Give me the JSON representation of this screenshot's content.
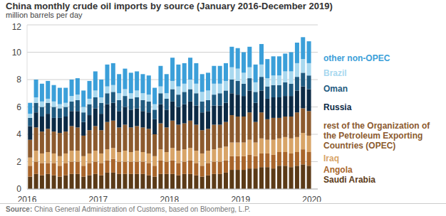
{
  "chart_data": {
    "type": "bar",
    "title": "China monthly crude oil imports by source (January 2016-December 2019)",
    "subtitle": "million barrels per day",
    "source": "Source: China General Administration of Customs, based on Bloomberg, L.P.",
    "stacked": true,
    "grid": true,
    "ylim": [
      0,
      12
    ],
    "yticks": [
      0,
      2,
      4,
      6,
      8,
      10,
      12
    ],
    "categories": [
      "2016",
      null,
      null,
      null,
      null,
      null,
      null,
      null,
      null,
      null,
      null,
      null,
      "2017",
      null,
      null,
      null,
      null,
      null,
      null,
      null,
      null,
      null,
      null,
      null,
      "2018",
      null,
      null,
      null,
      null,
      null,
      null,
      null,
      null,
      null,
      null,
      null,
      "2019",
      null,
      null,
      null,
      null,
      null,
      null,
      null,
      null,
      null,
      null,
      null,
      "2020"
    ],
    "series": [
      {
        "name": "Saudi Arabia",
        "color": "#5b3a17",
        "values": [
          0.9,
          1.1,
          1.0,
          1.1,
          1.0,
          0.9,
          1.0,
          1.1,
          1.1,
          0.9,
          1.0,
          1.1,
          1.0,
          1.2,
          1.2,
          1.1,
          1.1,
          1.1,
          1.1,
          1.1,
          1.0,
          0.9,
          1.1,
          1.1,
          1.1,
          1.0,
          1.1,
          1.1,
          1.0,
          0.9,
          1.0,
          1.1,
          1.1,
          1.2,
          1.4,
          1.4,
          1.4,
          1.5,
          1.5,
          1.6,
          1.6,
          1.5,
          1.7,
          1.7,
          1.6,
          1.7,
          1.8,
          1.7,
          null
        ]
      },
      {
        "name": "Angola",
        "color": "#a8652b",
        "values": [
          0.8,
          0.9,
          0.9,
          0.8,
          0.9,
          0.8,
          0.9,
          0.9,
          0.9,
          0.8,
          0.9,
          0.9,
          0.9,
          0.9,
          1.0,
          0.9,
          0.9,
          0.9,
          0.9,
          0.9,
          0.9,
          0.8,
          1.0,
          0.9,
          1.0,
          0.9,
          0.9,
          1.0,
          0.9,
          0.8,
          0.9,
          0.9,
          0.9,
          0.9,
          1.0,
          1.0,
          1.0,
          1.0,
          0.9,
          1.0,
          1.0,
          1.0,
          1.0,
          1.0,
          1.0,
          1.0,
          1.1,
          1.0,
          null
        ]
      },
      {
        "name": "Iraq",
        "color": "#d8a467",
        "values": [
          0.6,
          0.8,
          0.7,
          0.8,
          0.7,
          0.7,
          0.7,
          0.8,
          0.8,
          0.7,
          0.7,
          0.8,
          0.7,
          0.8,
          0.8,
          0.7,
          0.8,
          0.7,
          0.8,
          0.7,
          0.7,
          0.7,
          0.8,
          0.7,
          0.9,
          0.9,
          0.9,
          0.9,
          0.9,
          0.9,
          0.9,
          0.9,
          1.0,
          1.0,
          1.0,
          1.0,
          1.0,
          1.1,
          1.0,
          1.1,
          1.0,
          1.1,
          1.0,
          1.1,
          1.1,
          1.1,
          1.2,
          1.2,
          null
        ]
      },
      {
        "name": "rest of the Organization of the Petroleum Exporting Countries (OPEC)",
        "color": "#8c5a2e",
        "values": [
          1.3,
          1.7,
          1.6,
          1.7,
          1.6,
          1.7,
          1.6,
          1.8,
          1.7,
          1.5,
          1.7,
          1.8,
          1.7,
          2.0,
          2.0,
          1.8,
          1.9,
          1.8,
          1.8,
          1.8,
          1.8,
          1.6,
          1.9,
          1.8,
          2.0,
          1.9,
          1.9,
          2.0,
          1.9,
          1.7,
          1.6,
          1.8,
          1.7,
          1.8,
          2.0,
          1.9,
          1.9,
          2.0,
          1.5,
          1.9,
          1.5,
          1.6,
          1.5,
          1.5,
          1.6,
          1.8,
          1.8,
          1.8,
          null
        ]
      },
      {
        "name": "Russia",
        "color": "#0c2a45",
        "values": [
          1.0,
          1.1,
          1.1,
          1.1,
          1.0,
          1.1,
          1.1,
          1.1,
          1.2,
          1.0,
          1.1,
          1.3,
          1.2,
          1.3,
          1.3,
          1.2,
          1.3,
          1.3,
          1.3,
          1.2,
          1.2,
          1.1,
          1.4,
          1.3,
          1.4,
          1.3,
          1.4,
          1.4,
          1.4,
          1.3,
          1.3,
          1.4,
          1.4,
          1.4,
          1.6,
          1.6,
          1.5,
          1.6,
          1.4,
          1.6,
          1.5,
          1.5,
          1.5,
          1.5,
          1.5,
          1.6,
          1.6,
          1.6,
          null
        ]
      },
      {
        "name": "Oman",
        "color": "#1f5a80",
        "values": [
          0.6,
          0.7,
          0.7,
          0.8,
          0.8,
          0.7,
          0.7,
          0.7,
          0.8,
          0.7,
          0.8,
          0.8,
          0.8,
          0.8,
          0.8,
          0.8,
          0.8,
          0.8,
          0.8,
          0.8,
          0.8,
          0.7,
          0.8,
          0.8,
          0.9,
          0.9,
          0.9,
          0.9,
          0.9,
          0.8,
          0.8,
          0.8,
          0.9,
          0.9,
          1.0,
          1.0,
          0.9,
          0.9,
          0.8,
          1.0,
          0.9,
          0.9,
          0.9,
          1.0,
          0.9,
          1.0,
          1.0,
          1.0,
          null
        ]
      },
      {
        "name": "Brazil",
        "color": "#a8d8ef",
        "values": [
          0.3,
          0.4,
          0.4,
          0.3,
          0.4,
          0.3,
          0.3,
          0.4,
          0.4,
          0.4,
          0.4,
          0.5,
          0.4,
          0.5,
          0.5,
          0.5,
          0.5,
          0.4,
          0.5,
          0.5,
          0.5,
          0.4,
          0.5,
          0.4,
          0.6,
          0.6,
          0.6,
          0.7,
          0.7,
          0.7,
          0.7,
          0.8,
          0.7,
          0.7,
          0.9,
          0.9,
          0.8,
          0.8,
          0.7,
          0.9,
          0.6,
          0.7,
          0.7,
          0.8,
          0.9,
          1.0,
          1.0,
          0.9,
          null
        ]
      },
      {
        "name": "other non-OPEC",
        "color": "#3b9fd9",
        "values": [
          0.8,
          1.3,
          1.3,
          1.3,
          1.2,
          1.2,
          1.1,
          1.2,
          1.2,
          1.2,
          1.3,
          1.4,
          1.3,
          1.6,
          1.6,
          1.4,
          1.5,
          1.5,
          1.4,
          1.4,
          1.4,
          1.2,
          1.5,
          1.4,
          1.7,
          1.6,
          1.5,
          1.6,
          1.5,
          1.3,
          1.3,
          1.3,
          1.3,
          1.3,
          1.5,
          1.5,
          1.5,
          1.5,
          1.3,
          1.5,
          1.4,
          1.4,
          1.4,
          1.3,
          1.4,
          1.5,
          1.6,
          1.6,
          null
        ]
      }
    ]
  }
}
